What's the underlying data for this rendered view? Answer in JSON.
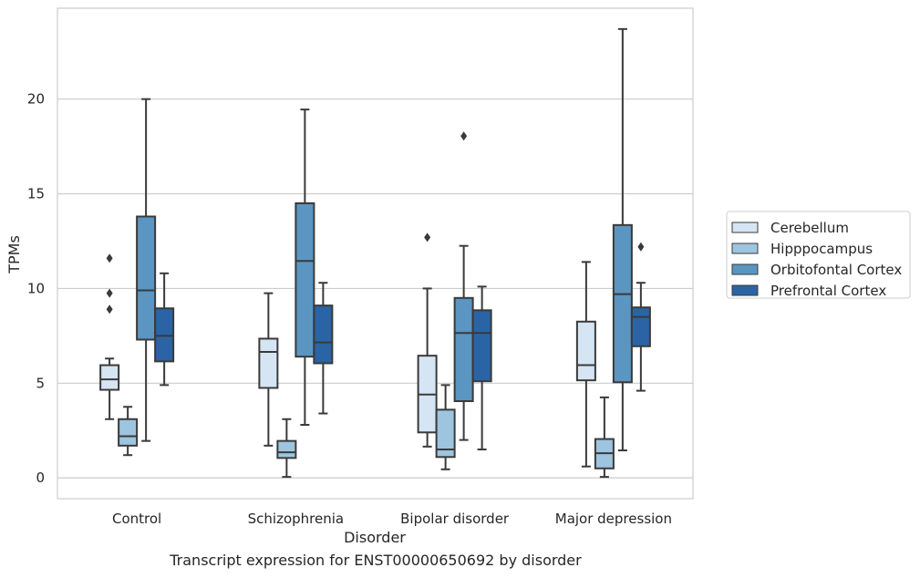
{
  "caption": "Transcript expression for ENST00000650692 by disorder",
  "chart_data": {
    "type": "box",
    "xlabel": "Disorder",
    "ylabel": "TPMs",
    "ylim": [
      -1.1,
      24.8
    ],
    "yticks": [
      0,
      5,
      10,
      15,
      20
    ],
    "grid": "horizontal",
    "legend_position": "right",
    "categories": [
      "Control",
      "Schizophrenia",
      "Bipolar disorder",
      "Major depression"
    ],
    "series": [
      {
        "name": "Cerebellum",
        "color": "#d6e5f3",
        "boxes": [
          {
            "whislo": 3.1,
            "q1": 4.65,
            "med": 5.2,
            "q3": 5.95,
            "whishi": 6.3,
            "fliers": [
              8.9,
              9.75,
              11.6
            ]
          },
          {
            "whislo": 1.7,
            "q1": 4.75,
            "med": 6.65,
            "q3": 7.35,
            "whishi": 9.75,
            "fliers": []
          },
          {
            "whislo": 1.65,
            "q1": 2.4,
            "med": 4.4,
            "q3": 6.45,
            "whishi": 10.0,
            "fliers": [
              12.7
            ]
          },
          {
            "whislo": 0.6,
            "q1": 5.15,
            "med": 5.95,
            "q3": 8.25,
            "whishi": 11.4,
            "fliers": []
          }
        ]
      },
      {
        "name": "Hipppocampus",
        "color": "#9dc5df",
        "boxes": [
          {
            "whislo": 1.2,
            "q1": 1.7,
            "med": 2.2,
            "q3": 3.1,
            "whishi": 3.75,
            "fliers": []
          },
          {
            "whislo": 0.05,
            "q1": 1.05,
            "med": 1.35,
            "q3": 1.95,
            "whishi": 3.1,
            "fliers": []
          },
          {
            "whislo": 0.45,
            "q1": 1.1,
            "med": 1.5,
            "q3": 3.6,
            "whishi": 4.9,
            "fliers": []
          },
          {
            "whislo": 0.05,
            "q1": 0.5,
            "med": 1.3,
            "q3": 2.05,
            "whishi": 4.25,
            "fliers": []
          }
        ]
      },
      {
        "name": "Orbitofontal Cortex",
        "color": "#5b95c2",
        "boxes": [
          {
            "whislo": 1.95,
            "q1": 7.3,
            "med": 9.9,
            "q3": 13.8,
            "whishi": 20.0,
            "fliers": []
          },
          {
            "whislo": 2.8,
            "q1": 6.4,
            "med": 11.45,
            "q3": 14.5,
            "whishi": 19.45,
            "fliers": []
          },
          {
            "whislo": 2.0,
            "q1": 4.05,
            "med": 7.65,
            "q3": 9.5,
            "whishi": 12.25,
            "fliers": [
              18.05
            ]
          },
          {
            "whislo": 1.45,
            "q1": 5.05,
            "med": 9.7,
            "q3": 13.35,
            "whishi": 23.7,
            "fliers": []
          }
        ]
      },
      {
        "name": "Prefrontal Cortex",
        "color": "#2a64a5",
        "boxes": [
          {
            "whislo": 4.9,
            "q1": 6.15,
            "med": 7.5,
            "q3": 8.95,
            "whishi": 10.8,
            "fliers": []
          },
          {
            "whislo": 3.4,
            "q1": 6.05,
            "med": 7.15,
            "q3": 9.1,
            "whishi": 10.3,
            "fliers": []
          },
          {
            "whislo": 1.5,
            "q1": 5.1,
            "med": 7.65,
            "q3": 8.85,
            "whishi": 10.1,
            "fliers": []
          },
          {
            "whislo": 4.6,
            "q1": 6.95,
            "med": 8.5,
            "q3": 9.0,
            "whishi": 10.3,
            "fliers": [
              12.2
            ]
          }
        ]
      }
    ]
  }
}
